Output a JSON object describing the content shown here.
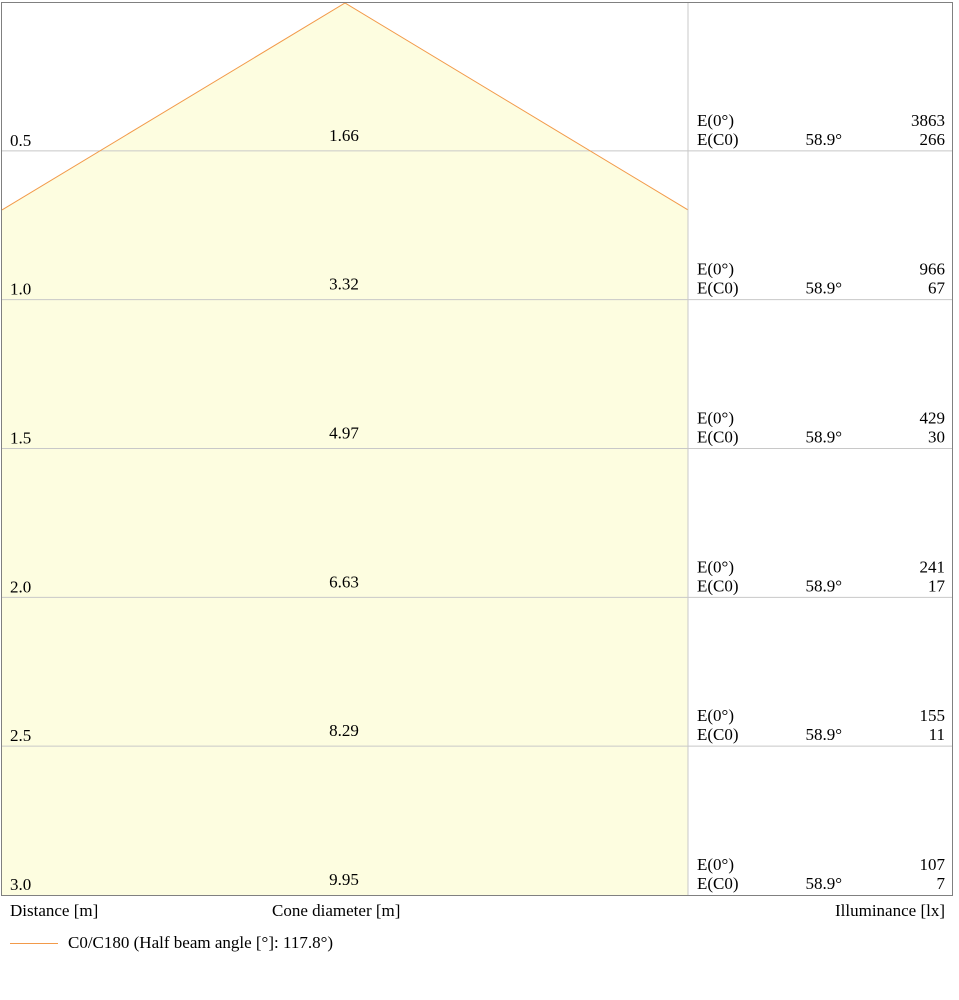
{
  "chart_data": {
    "type": "table",
    "series_color": "#f29a4a",
    "fill_color": "#fdfde0",
    "rows": [
      {
        "distance": "0.5",
        "cone_diameter": "1.66",
        "e0_label": "E(0°)",
        "e0_value": "3863",
        "ec0_label": "E(C0)",
        "angle": "58.9°",
        "ec0_value": "266"
      },
      {
        "distance": "1.0",
        "cone_diameter": "3.32",
        "e0_label": "E(0°)",
        "e0_value": "966",
        "ec0_label": "E(C0)",
        "angle": "58.9°",
        "ec0_value": "67"
      },
      {
        "distance": "1.5",
        "cone_diameter": "4.97",
        "e0_label": "E(0°)",
        "e0_value": "429",
        "ec0_label": "E(C0)",
        "angle": "58.9°",
        "ec0_value": "30"
      },
      {
        "distance": "2.0",
        "cone_diameter": "6.63",
        "e0_label": "E(0°)",
        "e0_value": "241",
        "ec0_label": "E(C0)",
        "angle": "58.9°",
        "ec0_value": "17"
      },
      {
        "distance": "2.5",
        "cone_diameter": "8.29",
        "e0_label": "E(0°)",
        "e0_value": "155",
        "ec0_label": "E(C0)",
        "angle": "58.9°",
        "ec0_value": "11"
      },
      {
        "distance": "3.0",
        "cone_diameter": "9.95",
        "e0_label": "E(0°)",
        "e0_value": "107",
        "ec0_label": "E(C0)",
        "angle": "58.9°",
        "ec0_value": "7"
      }
    ],
    "half_beam_angle_deg": 117.8,
    "labels": {
      "distance": "Distance [m]",
      "cone_diameter": "Cone diameter [m]",
      "illuminance": "Illuminance [lx]"
    },
    "legend": "C0/C180 (Half beam angle [°]: 117.8°)"
  }
}
